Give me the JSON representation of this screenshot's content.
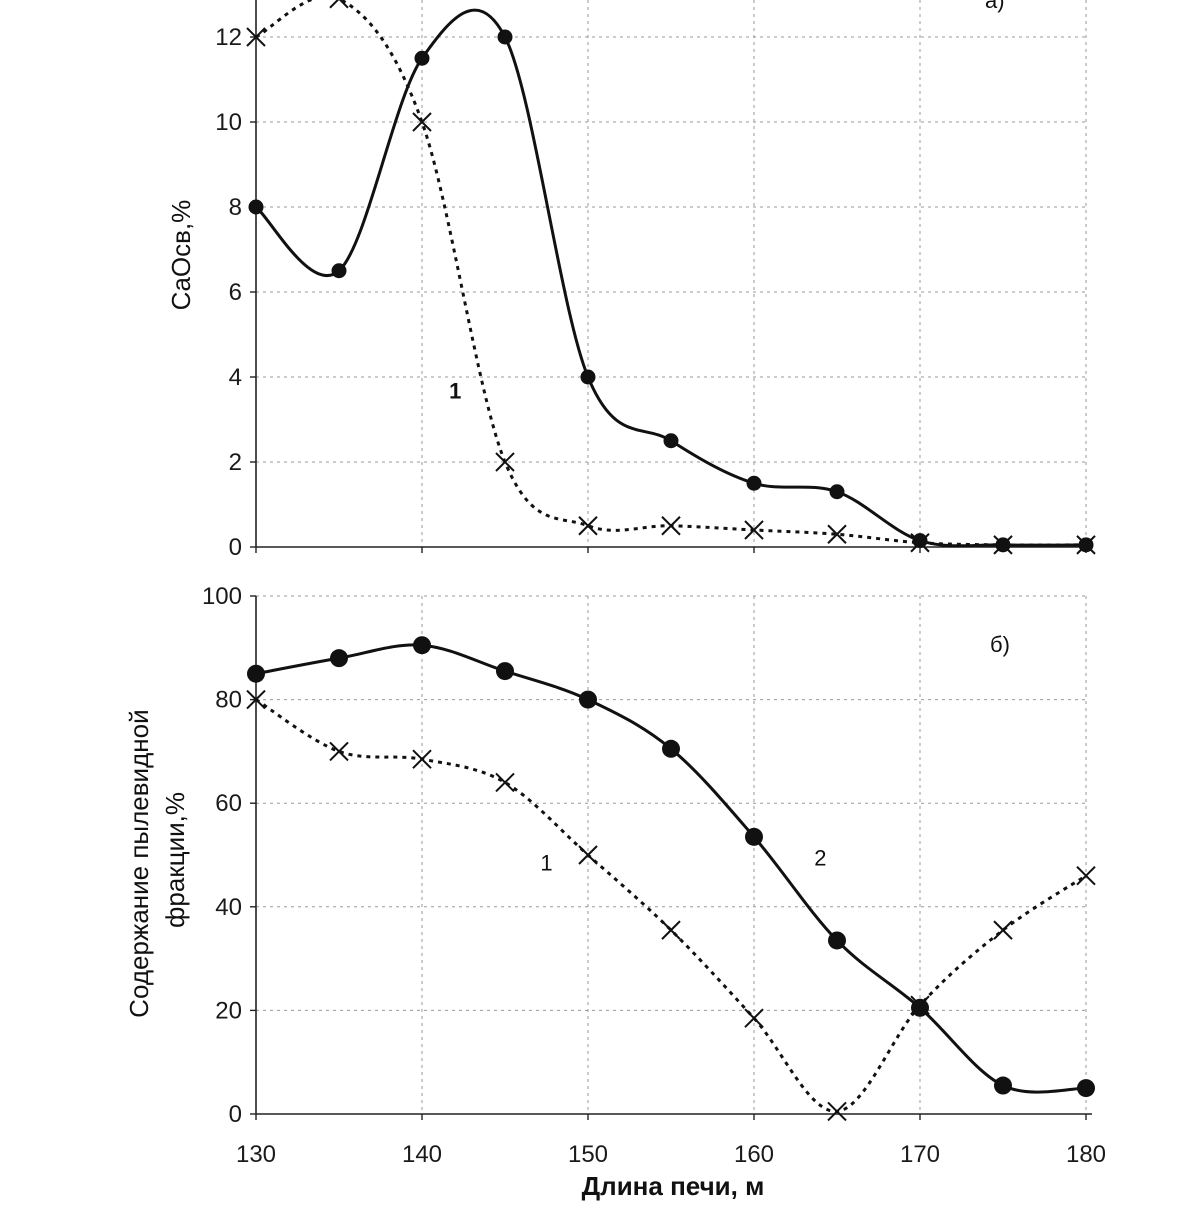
{
  "chart_data": [
    {
      "type": "line",
      "panel_label": "а)",
      "ylabel": "CaOсв,%",
      "xlabel": "",
      "xlim": [
        130,
        180
      ],
      "ylim": [
        0,
        12.5
      ],
      "x_ticks": [
        "130",
        "140",
        "150",
        "160",
        "170",
        "180"
      ],
      "y_ticks": [
        "0",
        "2",
        "4",
        "6",
        "8",
        "10",
        "12"
      ],
      "grid": true,
      "series": [
        {
          "name": "1",
          "marker": "cross",
          "style": "dotted",
          "x": [
            130,
            135,
            140,
            145,
            150,
            155,
            160,
            165,
            170,
            175,
            180
          ],
          "values": [
            12,
            12.9,
            10,
            2,
            0.5,
            0.5,
            0.4,
            0.3,
            0.1,
            0.05,
            0.05
          ]
        },
        {
          "name": "",
          "marker": "dot",
          "style": "solid",
          "x": [
            130,
            135,
            140,
            145,
            150,
            155,
            160,
            165,
            170,
            175,
            180
          ],
          "values": [
            8,
            6.5,
            11.5,
            12,
            4,
            2.5,
            1.5,
            1.3,
            0.15,
            0.05,
            0.05
          ]
        }
      ],
      "annotations": [
        {
          "text": "1",
          "x": 142,
          "y": 3.5
        }
      ]
    },
    {
      "type": "line",
      "panel_label": "б)",
      "ylabel_lines": [
        "Содержание пылевидной",
        "фракции,%"
      ],
      "xlabel": "Длина печи, м",
      "xlim": [
        130,
        180
      ],
      "ylim": [
        0,
        100
      ],
      "x_ticks": [
        "130",
        "140",
        "150",
        "160",
        "170",
        "180"
      ],
      "y_ticks": [
        "0",
        "20",
        "40",
        "60",
        "80",
        "100"
      ],
      "grid": true,
      "series": [
        {
          "name": "1",
          "marker": "cross",
          "style": "dotted",
          "x": [
            130,
            135,
            140,
            145,
            150,
            155,
            160,
            165,
            170,
            175,
            180
          ],
          "values": [
            80,
            70,
            68.5,
            64,
            50,
            35.5,
            18.5,
            0.5,
            21,
            35.5,
            46
          ]
        },
        {
          "name": "2",
          "marker": "dot",
          "style": "solid",
          "x": [
            130,
            135,
            140,
            145,
            150,
            155,
            160,
            165,
            170,
            175,
            180
          ],
          "values": [
            85,
            88,
            90.5,
            85.5,
            80,
            70.5,
            53.5,
            33.5,
            20.5,
            5.5,
            5
          ]
        }
      ],
      "annotations": [
        {
          "text": "1",
          "x": 147.5,
          "y": 47
        },
        {
          "text": "2",
          "x": 164,
          "y": 48
        }
      ]
    }
  ]
}
